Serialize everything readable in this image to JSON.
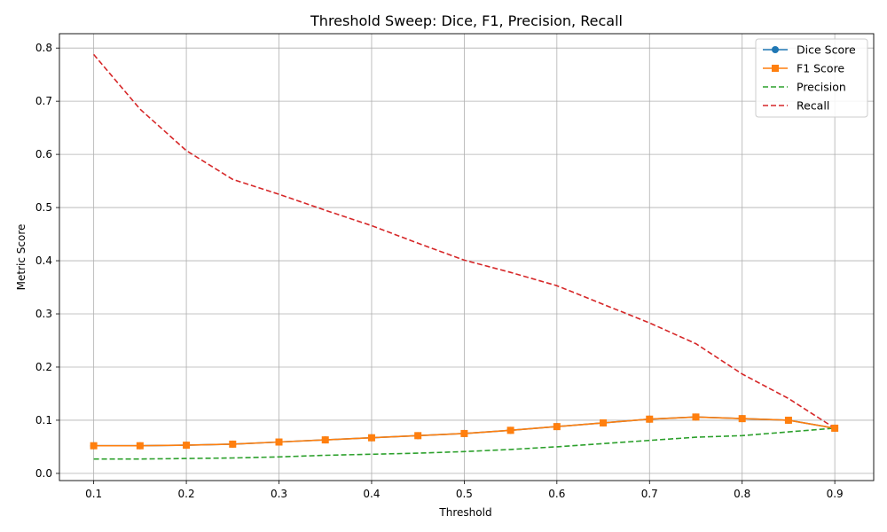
{
  "chart_data": {
    "type": "line",
    "title": "Threshold Sweep: Dice, F1, Precision, Recall",
    "xlabel": "Threshold",
    "ylabel": "Metric Score",
    "xlim": [
      0.063,
      0.942
    ],
    "ylim": [
      -0.0135,
      0.827
    ],
    "xticks": [
      0.1,
      0.2,
      0.3,
      0.4,
      0.5,
      0.6,
      0.7,
      0.8,
      0.9
    ],
    "yticks": [
      0.0,
      0.1,
      0.2,
      0.3,
      0.4,
      0.5,
      0.6,
      0.7,
      0.8
    ],
    "grid": true,
    "legend_position": "top-right",
    "x": [
      0.1,
      0.15,
      0.2,
      0.25,
      0.3,
      0.35,
      0.4,
      0.45,
      0.5,
      0.55,
      0.6,
      0.65,
      0.7,
      0.75,
      0.8,
      0.85,
      0.9
    ],
    "series": [
      {
        "name": "Dice Score",
        "color": "#1f77b4",
        "style": "solid",
        "marker": "circle",
        "values": [
          0.052,
          0.052,
          0.053,
          0.055,
          0.059,
          0.063,
          0.067,
          0.071,
          0.075,
          0.081,
          0.088,
          0.095,
          0.102,
          0.106,
          0.103,
          0.1,
          0.085
        ]
      },
      {
        "name": "F1 Score",
        "color": "#ff7f0e",
        "style": "solid",
        "marker": "square",
        "values": [
          0.052,
          0.052,
          0.053,
          0.055,
          0.059,
          0.063,
          0.067,
          0.071,
          0.075,
          0.081,
          0.088,
          0.095,
          0.102,
          0.106,
          0.103,
          0.1,
          0.085
        ]
      },
      {
        "name": "Precision",
        "color": "#2ca02c",
        "style": "dashed",
        "marker": "none",
        "values": [
          0.027,
          0.027,
          0.028,
          0.029,
          0.031,
          0.034,
          0.036,
          0.038,
          0.041,
          0.045,
          0.05,
          0.056,
          0.062,
          0.068,
          0.071,
          0.078,
          0.085
        ]
      },
      {
        "name": "Recall",
        "color": "#d62728",
        "style": "dashed",
        "marker": "none",
        "values": [
          0.788,
          0.685,
          0.607,
          0.553,
          0.525,
          0.495,
          0.466,
          0.433,
          0.401,
          0.378,
          0.353,
          0.318,
          0.283,
          0.244,
          0.187,
          0.141,
          0.085
        ]
      }
    ]
  }
}
